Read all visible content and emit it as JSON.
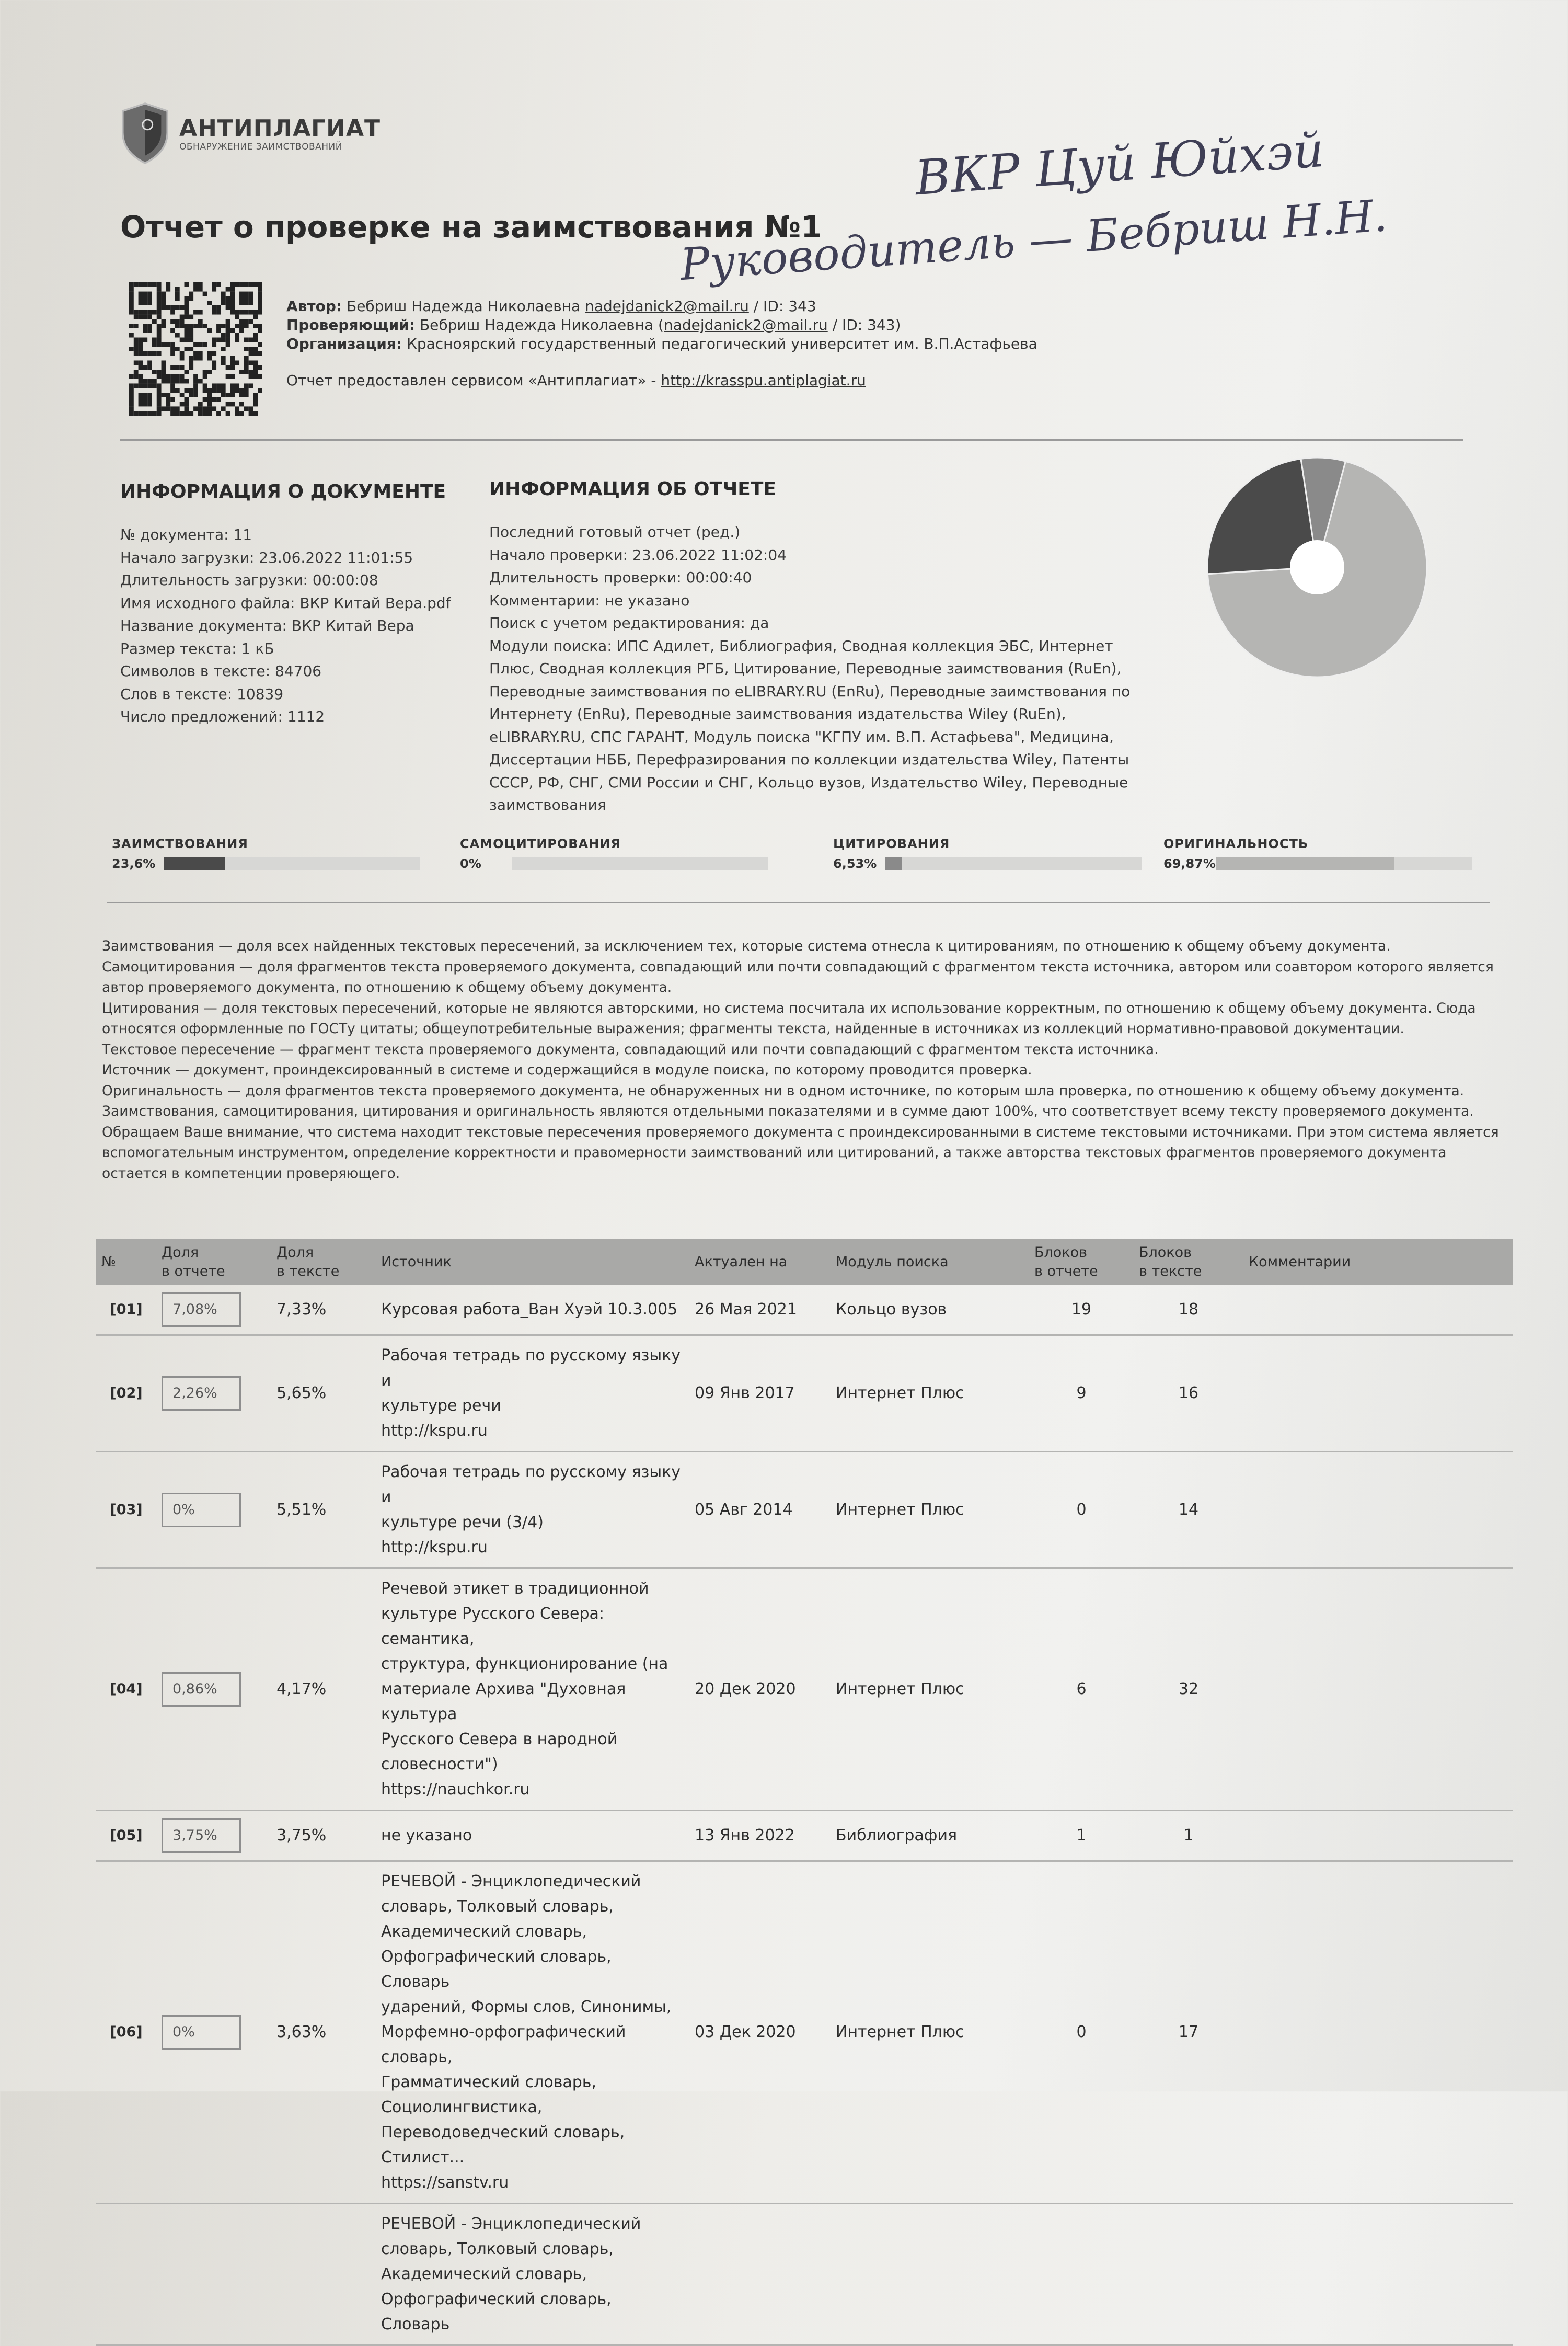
{
  "logo": {
    "title": "АНТИПЛАГИАТ",
    "subtitle": "ОБНАРУЖЕНИЕ ЗАИМСТВОВАНИЙ"
  },
  "title": "Отчет о проверке на заимствования №1",
  "handwriting": {
    "line1": "ВКР Цуй Юйхэй",
    "line2": "Руководитель — Бебриш Н.Н."
  },
  "meta": {
    "author_label": "Автор:",
    "author_name": "Бебриш Надежда Николаевна",
    "author_email": "nadejdanick2@mail.ru",
    "author_id": " / ID: 343",
    "checker_label": "Проверяющий:",
    "checker_name": "Бебриш Надежда Николаевна (",
    "checker_email": "nadejdanick2@mail.ru",
    "checker_id": " / ID: 343)",
    "org_label": "Организация:",
    "org_name": "Красноярский государственный педагогический университет им. В.П.Астафьева",
    "service_text": "Отчет предоставлен сервисом «Антиплагиат» - ",
    "service_link": "http://krasspu.antiplagiat.ru"
  },
  "doc_info": {
    "heading": "ИНФОРМАЦИЯ О ДОКУМЕНТЕ",
    "lines": [
      "№ документа: 11",
      "Начало загрузки: 23.06.2022 11:01:55",
      "Длительность загрузки: 00:00:08",
      "Имя исходного файла: ВКР Китай Вера.pdf",
      "Название документа: ВКР Китай Вера",
      "Размер текста: 1 кБ",
      "Символов в тексте: 84706",
      "Слов в тексте: 10839",
      "Число предложений: 1112"
    ]
  },
  "report_info": {
    "heading": "ИНФОРМАЦИЯ ОБ ОТЧЕТЕ",
    "lines": [
      "Последний готовый отчет (ред.)",
      "Начало проверки: 23.06.2022 11:02:04",
      "Длительность проверки: 00:00:40",
      "Комментарии: не указано",
      "Поиск с учетом редактирования: да",
      "Модули поиска: ИПС Адилет, Библиография, Сводная коллекция ЭБС, Интернет Плюс, Сводная коллекция РГБ, Цитирование, Переводные заимствования (RuEn), Переводные заимствования по eLIBRARY.RU (EnRu), Переводные заимствования по Интернету (EnRu), Переводные заимствования издательства Wiley (RuEn), eLIBRARY.RU, СПС ГАРАНТ, Модуль поиска \"КГПУ им. В.П. Астафьева\", Медицина, Диссертации НББ, Перефразирования по коллекции издательства Wiley, Патенты СССР, РФ, СНГ, СМИ России и СНГ, Кольцо вузов, Издательство Wiley, Переводные заимствования"
    ]
  },
  "stats": [
    {
      "label": "ЗАИМСТВОВАНИЯ",
      "value": "23,6%",
      "percent": 23.6,
      "color": "#4a4a4a"
    },
    {
      "label": "САМОЦИТИРОВАНИЯ",
      "value": "0%",
      "percent": 0,
      "color": "#7a7a7a"
    },
    {
      "label": "ЦИТИРОВАНИЯ",
      "value": "6,53%",
      "percent": 6.53,
      "color": "#8a8a8a"
    },
    {
      "label": "ОРИГИНАЛЬНОСТЬ",
      "value": "69,87%",
      "percent": 69.87,
      "color": "#b5b5b3"
    }
  ],
  "pie": {
    "hole_color": "#ffffff"
  },
  "definitions": [
    "Заимствования — доля всех найденных текстовых пересечений, за исключением тех, которые система отнесла к цитированиям, по отношению к общему объему документа.",
    "Самоцитирования — доля фрагментов текста проверяемого документа, совпадающий или почти совпадающий с фрагментом текста источника, автором или соавтором которого является автор проверяемого документа, по отношению к общему объему документа.",
    "Цитирования — доля текстовых пересечений, которые не являются авторскими, но система посчитала их использование корректным, по отношению к общему объему документа. Сюда относятся оформленные по ГОСТу цитаты; общеупотребительные выражения; фрагменты текста, найденные в источниках из коллекций нормативно-правовой документации.",
    "Текстовое пересечение — фрагмент текста проверяемого документа, совпадающий или почти совпадающий с фрагментом текста источника.",
    "Источник — документ, проиндексированный в системе и содержащийся в модуле поиска, по которому проводится проверка.",
    "Оригинальность — доля фрагментов текста проверяемого документа, не обнаруженных ни в одном источнике, по которым шла проверка, по отношению к общему объему документа.",
    "Заимствования, самоцитирования, цитирования и оригинальность являются отдельными показателями и в сумме дают 100%, что соответствует всему тексту проверяемого документа.",
    "Обращаем Ваше внимание, что система находит текстовые пересечения проверяемого документа с проиндексированными в системе текстовыми источниками. При этом система является вспомогательным инструментом, определение корректности и правомерности заимствований или цитирований, а также авторства текстовых фрагментов проверяемого документа остается в компетенции проверяющего."
  ],
  "table": {
    "headers": [
      "№",
      "Доля\nв отчете",
      "Доля\nв тексте",
      "Источник",
      "Актуален на",
      "Модуль поиска",
      "Блоков\nв отчете",
      "Блоков\nв тексте",
      "Комментарии"
    ],
    "rows": [
      {
        "num": "[01]",
        "share_report": "7,08%",
        "share_text": "7,33%",
        "source": "Курсовая работа_Ван Хуэй 10.3.005",
        "date": "26 Мая 2021",
        "module": "Кольцо вузов",
        "blocks_report": "19",
        "blocks_text": "18",
        "comment": ""
      },
      {
        "num": "[02]",
        "share_report": "2,26%",
        "share_text": "5,65%",
        "source": "Рабочая тетрадь по русскому языку и\nкультуре речи\nhttp://kspu.ru",
        "date": "09 Янв 2017",
        "module": "Интернет Плюс",
        "blocks_report": "9",
        "blocks_text": "16",
        "comment": ""
      },
      {
        "num": "[03]",
        "share_report": "0%",
        "share_text": "5,51%",
        "source": "Рабочая тетрадь по русскому языку и\nкультуре речи (3/4)\nhttp://kspu.ru",
        "date": "05 Авг 2014",
        "module": "Интернет Плюс",
        "blocks_report": "0",
        "blocks_text": "14",
        "comment": ""
      },
      {
        "num": "[04]",
        "share_report": "0,86%",
        "share_text": "4,17%",
        "source": "Речевой этикет в традиционной\nкультуре Русского Севера: семантика,\nструктура, функционирование (на\nматериале Архива \"Духовная культура\nРусского Севера в народной\nсловесности\")\nhttps://nauchkor.ru",
        "date": "20 Дек 2020",
        "module": "Интернет Плюс",
        "blocks_report": "6",
        "blocks_text": "32",
        "comment": ""
      },
      {
        "num": "[05]",
        "share_report": "3,75%",
        "share_text": "3,75%",
        "source": "не указано",
        "date": "13 Янв 2022",
        "module": "Библиография",
        "blocks_report": "1",
        "blocks_text": "1",
        "comment": ""
      },
      {
        "num": "[06]",
        "share_report": "0%",
        "share_text": "3,63%",
        "source": "РЕЧЕВОЙ - Энциклопедический\nсловарь, Толковый словарь,\nАкадемический словарь,\nОрфографический словарь, Словарь\nударений, Формы слов, Синонимы,\nМорфемно-орфографический словарь,\nГрамматический словарь,\nСоциолингвистика,\nПереводоведческий словарь, Стилист...\nhttps://sanstv.ru",
        "date": "03 Дек 2020",
        "module": "Интернет Плюс",
        "blocks_report": "0",
        "blocks_text": "17",
        "comment": ""
      },
      {
        "num": "",
        "share_report": "",
        "share_text": "",
        "source": "РЕЧЕВОЙ - Энциклопедический\nсловарь, Толковый словарь,\nАкадемический словарь,\nОрфографический словарь, Словарь",
        "date": "",
        "module": "",
        "blocks_report": "",
        "blocks_text": "",
        "comment": ""
      }
    ]
  }
}
